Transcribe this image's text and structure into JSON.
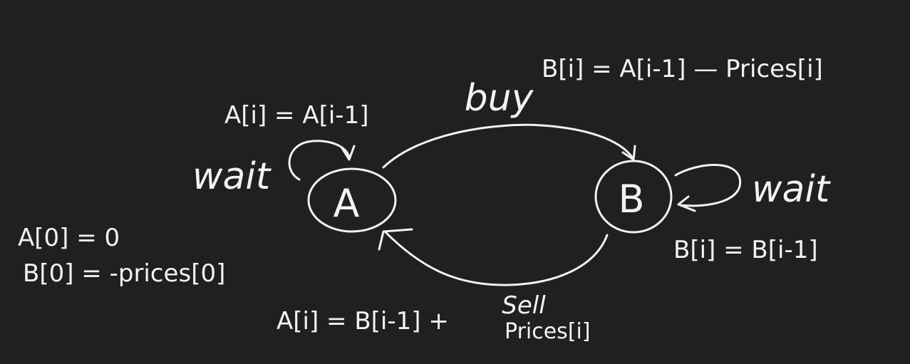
{
  "diagram": {
    "states": {
      "a": {
        "label": "A"
      },
      "b": {
        "label": "B"
      }
    },
    "transitions": {
      "buy": {
        "label": "buy",
        "formula": "B[i] = A[i-1] — Prices[i]"
      },
      "sell": {
        "label": "Sell",
        "formula_left": "A[i] = B[i-1] +",
        "formula_right": "Prices[i]"
      },
      "wait_a": {
        "label": "wait",
        "formula": "A[i] = A[i-1]"
      },
      "wait_b": {
        "label": "wait",
        "formula": "B[i] = B[i-1]"
      }
    },
    "initial_conditions": {
      "a0": "A[0] = 0",
      "b0": "B[0] = -prices[0]"
    }
  }
}
